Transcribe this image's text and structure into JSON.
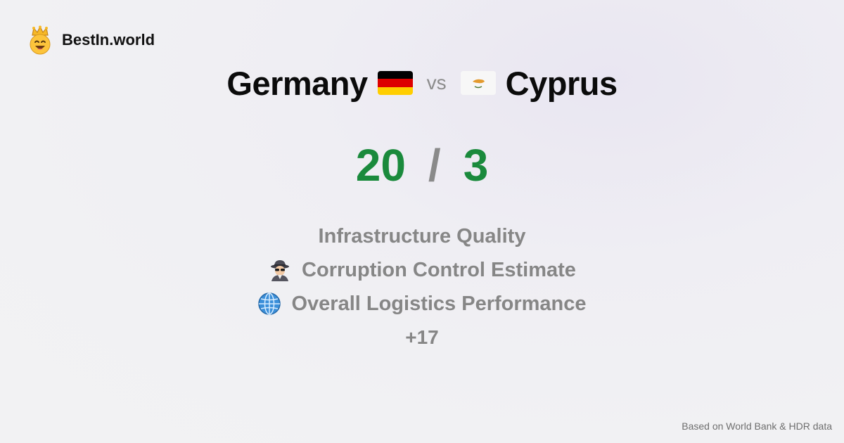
{
  "brand": {
    "name": "BestIn.world"
  },
  "title": {
    "left": "Germany",
    "vs": "vs",
    "right": "Cyprus"
  },
  "score": {
    "left": "20",
    "separator": "/",
    "right": "3"
  },
  "metrics": [
    {
      "label": "Infrastructure Quality",
      "icon": ""
    },
    {
      "label": "Corruption Control Estimate",
      "icon": "detective-icon"
    },
    {
      "label": "Overall Logistics Performance",
      "icon": "globe-icon"
    }
  ],
  "more": "+17",
  "footer": {
    "source": "Based on World Bank & HDR data"
  },
  "colors": {
    "score": "#1a8a3c",
    "muted": "#868686"
  }
}
